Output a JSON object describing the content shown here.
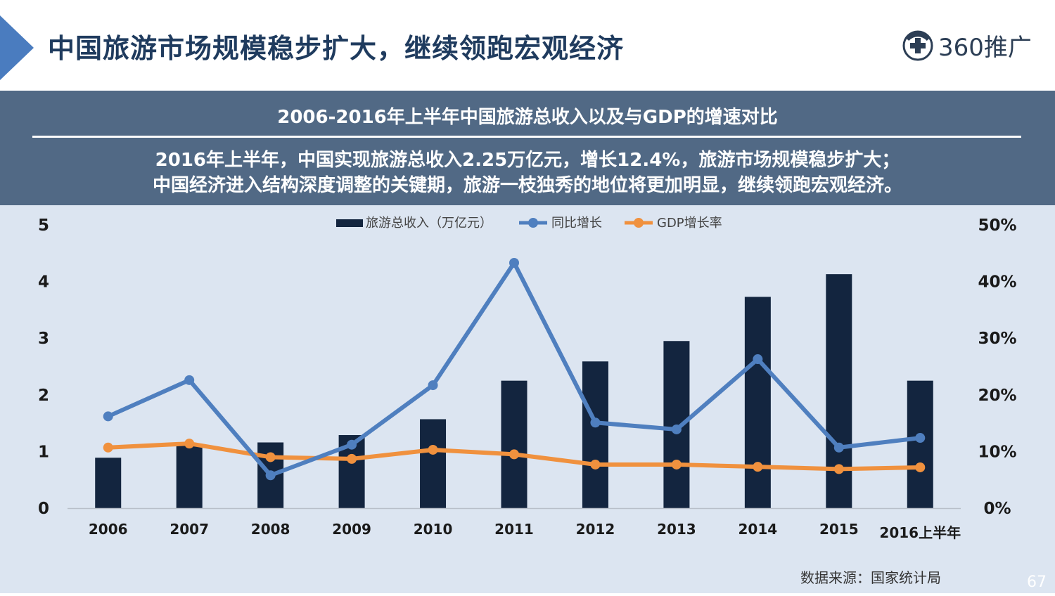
{
  "header": {
    "title": "中国旅游市场规模稳步扩大，继续领跑宏观经济",
    "brand": "360推广"
  },
  "banner": {
    "title": "2006-2016年上半年中国旅游总收入以及与GDP的增速对比",
    "line1": "2016年上半年，中国实现旅游总收入2.25万亿元，增长12.4%，旅游市场规模稳步扩大；",
    "line2": "中国经济进入结构深度调整的关键期，旅游一枝独秀的地位将更加明显，继续领跑宏观经济。"
  },
  "colors": {
    "bar": "#13253f",
    "yoy_line": "#4f7fbf",
    "gdp_line": "#f0913e",
    "chart_bg": "#dce5f1",
    "banner_bg": "#516985"
  },
  "chart_data": {
    "type": "bar",
    "categories": [
      "2006",
      "2007",
      "2008",
      "2009",
      "2010",
      "2011",
      "2012",
      "2013",
      "2014",
      "2015",
      "2016上半年"
    ],
    "series": [
      {
        "name": "旅游总收入（万亿元）",
        "type": "bar",
        "axis": "left",
        "values": [
          0.89,
          1.1,
          1.16,
          1.29,
          1.57,
          2.25,
          2.59,
          2.95,
          3.73,
          4.13,
          2.25
        ]
      },
      {
        "name": "同比增长",
        "type": "line",
        "axis": "right",
        "values": [
          16.2,
          22.6,
          5.8,
          11.2,
          21.7,
          43.3,
          15.1,
          13.9,
          26.3,
          10.7,
          12.4
        ]
      },
      {
        "name": "GDP增长率",
        "type": "line",
        "axis": "right",
        "values": [
          10.7,
          11.4,
          9.0,
          8.7,
          10.3,
          9.5,
          7.7,
          7.7,
          7.3,
          6.9,
          7.2
        ]
      }
    ],
    "y_left": {
      "ticks": [
        "0",
        "1",
        "2",
        "3",
        "4",
        "5"
      ],
      "ylim": [
        0,
        5
      ]
    },
    "y_right": {
      "ticks": [
        "0%",
        "10%",
        "20%",
        "30%",
        "40%",
        "50%"
      ],
      "ylim": [
        0,
        50
      ]
    },
    "legend": "top-center",
    "grid": false
  },
  "footer": {
    "source": "数据来源：国家统计局",
    "page_number": "67"
  }
}
